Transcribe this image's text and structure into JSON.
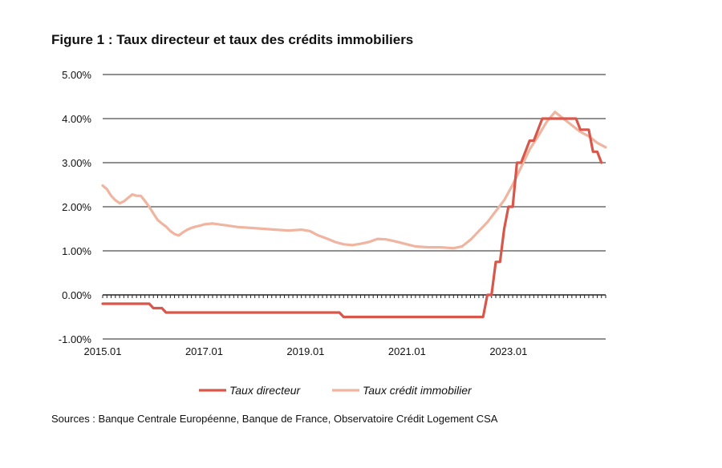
{
  "figure": {
    "title": "Figure 1 : Taux directeur et taux des crédits immobiliers",
    "source": "Sources : Banque Centrale Européenne, Banque de France, Observatoire Crédit Logement CSA"
  },
  "chart_data": {
    "type": "line",
    "title": "Figure 1 : Taux directeur et taux des crédits immobiliers",
    "xlabel": "",
    "ylabel": "",
    "x_ticks": [
      "2015.01",
      "2017.01",
      "2019.01",
      "2021.01",
      "2023.01"
    ],
    "y_ticks": [
      "5.00%",
      "4.00%",
      "3.00%",
      "2.00%",
      "1.00%",
      "0.00%",
      "-1.00%"
    ],
    "y_tick_values": [
      5,
      4,
      3,
      2,
      1,
      0,
      -1
    ],
    "ylim": [
      -1,
      5
    ],
    "xlim": [
      "2015-01",
      "2024-12"
    ],
    "grid": "horizontal",
    "legend_position": "bottom",
    "colors": {
      "taux_directeur": "#d9574a",
      "taux_credit": "#efb5a0"
    },
    "series": [
      {
        "name": "Taux directeur",
        "color": "#d9574a",
        "points": [
          [
            "2015-01",
            -0.2
          ],
          [
            "2015-12",
            -0.2
          ],
          [
            "2016-01",
            -0.3
          ],
          [
            "2016-03",
            -0.3
          ],
          [
            "2016-04",
            -0.4
          ],
          [
            "2019-09",
            -0.4
          ],
          [
            "2019-10",
            -0.5
          ],
          [
            "2022-07",
            -0.5
          ],
          [
            "2022-08",
            0.0
          ],
          [
            "2022-09",
            0.0
          ],
          [
            "2022-10",
            0.75
          ],
          [
            "2022-11",
            0.75
          ],
          [
            "2022-12",
            1.5
          ],
          [
            "2023-01",
            2.0
          ],
          [
            "2023-02",
            2.0
          ],
          [
            "2023-03",
            3.0
          ],
          [
            "2023-04",
            3.0
          ],
          [
            "2023-05",
            3.25
          ],
          [
            "2023-06",
            3.5
          ],
          [
            "2023-07",
            3.5
          ],
          [
            "2023-08",
            3.75
          ],
          [
            "2023-09",
            4.0
          ],
          [
            "2024-05",
            4.0
          ],
          [
            "2024-06",
            3.75
          ],
          [
            "2024-08",
            3.75
          ],
          [
            "2024-09",
            3.25
          ],
          [
            "2024-10",
            3.25
          ],
          [
            "2024-11",
            3.0
          ]
        ]
      },
      {
        "name": "Taux crédit immobilier",
        "color": "#efb5a0",
        "points": [
          [
            "2015-01",
            2.48
          ],
          [
            "2015-02",
            2.4
          ],
          [
            "2015-03",
            2.25
          ],
          [
            "2015-04",
            2.15
          ],
          [
            "2015-05",
            2.08
          ],
          [
            "2015-06",
            2.12
          ],
          [
            "2015-07",
            2.2
          ],
          [
            "2015-08",
            2.28
          ],
          [
            "2015-09",
            2.25
          ],
          [
            "2015-10",
            2.25
          ],
          [
            "2015-11",
            2.13
          ],
          [
            "2015-12",
            2.0
          ],
          [
            "2016-01",
            1.85
          ],
          [
            "2016-02",
            1.7
          ],
          [
            "2016-03",
            1.62
          ],
          [
            "2016-04",
            1.55
          ],
          [
            "2016-05",
            1.45
          ],
          [
            "2016-06",
            1.38
          ],
          [
            "2016-07",
            1.35
          ],
          [
            "2016-08",
            1.42
          ],
          [
            "2016-09",
            1.48
          ],
          [
            "2016-10",
            1.52
          ],
          [
            "2016-11",
            1.55
          ],
          [
            "2016-12",
            1.57
          ],
          [
            "2017-01",
            1.6
          ],
          [
            "2017-03",
            1.62
          ],
          [
            "2017-06",
            1.58
          ],
          [
            "2017-09",
            1.54
          ],
          [
            "2017-12",
            1.52
          ],
          [
            "2018-03",
            1.5
          ],
          [
            "2018-06",
            1.48
          ],
          [
            "2018-09",
            1.46
          ],
          [
            "2018-12",
            1.48
          ],
          [
            "2019-02",
            1.45
          ],
          [
            "2019-04",
            1.35
          ],
          [
            "2019-06",
            1.28
          ],
          [
            "2019-08",
            1.2
          ],
          [
            "2019-10",
            1.15
          ],
          [
            "2019-12",
            1.13
          ],
          [
            "2020-02",
            1.16
          ],
          [
            "2020-04",
            1.2
          ],
          [
            "2020-06",
            1.27
          ],
          [
            "2020-08",
            1.26
          ],
          [
            "2020-10",
            1.22
          ],
          [
            "2020-12",
            1.17
          ],
          [
            "2021-03",
            1.1
          ],
          [
            "2021-06",
            1.08
          ],
          [
            "2021-09",
            1.08
          ],
          [
            "2021-12",
            1.06
          ],
          [
            "2022-02",
            1.1
          ],
          [
            "2022-04",
            1.25
          ],
          [
            "2022-06",
            1.45
          ],
          [
            "2022-08",
            1.65
          ],
          [
            "2022-10",
            1.9
          ],
          [
            "2022-12",
            2.15
          ],
          [
            "2023-02",
            2.5
          ],
          [
            "2023-04",
            2.9
          ],
          [
            "2023-06",
            3.3
          ],
          [
            "2023-08",
            3.6
          ],
          [
            "2023-10",
            3.92
          ],
          [
            "2023-12",
            4.15
          ],
          [
            "2024-02",
            4.0
          ],
          [
            "2024-04",
            3.85
          ],
          [
            "2024-06",
            3.7
          ],
          [
            "2024-08",
            3.6
          ],
          [
            "2024-10",
            3.45
          ],
          [
            "2024-12",
            3.35
          ]
        ]
      }
    ]
  }
}
